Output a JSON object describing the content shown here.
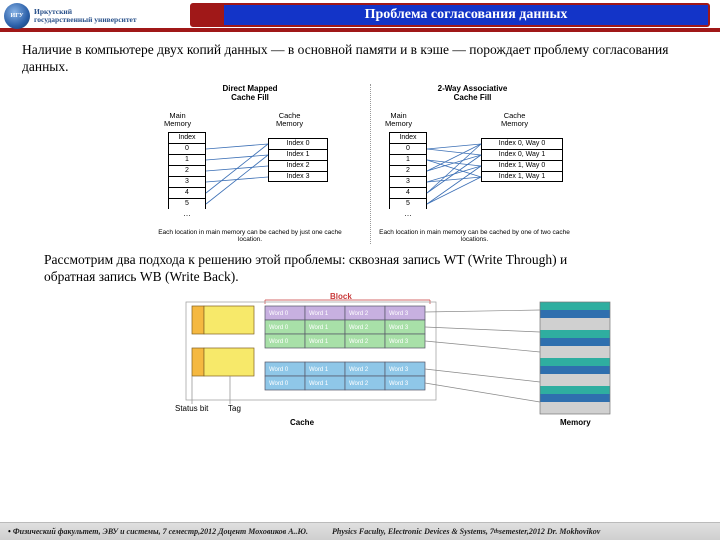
{
  "header": {
    "logo_text_line1": "Иркутский",
    "logo_text_line2": "государственный университет",
    "logo_glyph": "ИГУ",
    "title": "Проблема согласования данных"
  },
  "paragraph1": "Наличие в компьютере двух копий данных — в основной памяти и в кэше — порождает проблему согласования данных.",
  "paragraph2": "Рассмотрим два подхода к решению этой проблемы: сквозная запись WT (Write Through) и обратная запись WB (Write Back).",
  "diagram1": {
    "left": {
      "title_l1": "Direct Mapped",
      "title_l2": "Cache Fill",
      "main_label_l1": "Main",
      "main_label_l2": "Memory",
      "cache_label_l1": "Cache",
      "cache_label_l2": "Memory",
      "index_header": "Index",
      "main_indices": [
        "0",
        "1",
        "2",
        "3",
        "4",
        "5"
      ],
      "cache_entries": [
        "Index 0",
        "Index 1",
        "Index 2",
        "Index 3"
      ],
      "caption": "Each location in main memory can be cached by just one cache location."
    },
    "right": {
      "title_l1": "2-Way Associative",
      "title_l2": "Cache Fill",
      "main_label_l1": "Main",
      "main_label_l2": "Memory",
      "cache_label_l1": "Cache",
      "cache_label_l2": "Memory",
      "index_header": "Index",
      "main_indices": [
        "0",
        "1",
        "2",
        "3",
        "4",
        "5"
      ],
      "cache_entries": [
        "Index 0, Way 0",
        "Index 0, Way 1",
        "Index 1, Way 0",
        "Index 1, Way 1"
      ],
      "caption": "Each location in main memory can be cached by one of two cache locations."
    },
    "colors": {
      "line": "#3b6fb5"
    }
  },
  "diagram2": {
    "block_label": "Block",
    "status_label": "Status bit",
    "tag_label": "Tag",
    "cache_label": "Cache",
    "memory_label": "Memory",
    "rows": [
      {
        "bg": "#c7b0e0",
        "words": [
          "Word 0",
          "Word 1",
          "Word 2",
          "Word 3"
        ]
      },
      {
        "bg": "#a8e0a8",
        "words": [
          "Word 0",
          "Word 1",
          "Word 2",
          "Word 3"
        ]
      },
      {
        "bg": "#a8e0a8",
        "words": [
          "Word 0",
          "Word 1",
          "Word 2",
          "Word 3"
        ]
      },
      {
        "bg": "#8fc7e8",
        "words": [
          "Word 0",
          "Word 1",
          "Word 2",
          "Word 3"
        ]
      },
      {
        "bg": "#8fc7e8",
        "words": [
          "Word 0",
          "Word 1",
          "Word 2",
          "Word 3"
        ]
      }
    ],
    "cache_slots": {
      "count": 2,
      "status_color": "#f5b840",
      "tag_color": "#f7e96a",
      "slot_height_rows": 2,
      "gap_rows": 1
    },
    "memory": {
      "stripe_colors": [
        "#2faea0",
        "#2f6fae",
        "#d0d0d0"
      ],
      "stripes": 28
    }
  },
  "footer": {
    "ru": "Физический факультет, ЭВУ и системы, 7 семестр,2012 Доцент Моховиков А..Ю.",
    "en_pre": "Physics Faculty, Electronic Devices & Systems, 7",
    "en_sup": "th",
    "en_post": " semester,2012   Dr. Mokhovikov"
  }
}
